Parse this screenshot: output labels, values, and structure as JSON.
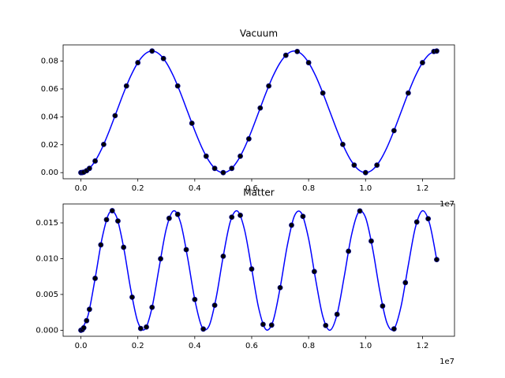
{
  "chart_data": [
    {
      "type": "line",
      "title": "Vacuum",
      "offset_text": "1e7",
      "x": [
        0,
        0.025,
        0.05,
        0.075,
        0.1,
        0.125,
        0.15,
        0.175,
        0.2,
        0.225,
        0.25,
        0.275,
        0.3,
        0.325,
        0.35,
        0.375,
        0.4,
        0.425,
        0.45,
        0.475,
        0.5,
        0.525,
        0.55,
        0.575,
        0.6,
        0.625,
        0.65,
        0.675,
        0.7,
        0.725,
        0.75,
        0.775,
        0.8,
        0.825,
        0.85,
        0.875,
        0.9,
        0.925,
        0.95,
        0.975,
        1.0,
        1.025,
        1.05,
        1.075,
        1.1,
        1.125,
        1.15,
        1.175,
        1.2,
        1.225,
        1.25
      ],
      "series": [
        {
          "color": "#0000ff",
          "values": [
            0,
            0.00213,
            0.00833,
            0.01797,
            0.03013,
            0.0436,
            0.05707,
            0.06923,
            0.07887,
            0.08507,
            0.0872,
            0.08507,
            0.07887,
            0.06923,
            0.05707,
            0.0436,
            0.03013,
            0.01797,
            0.00833,
            0.00213,
            0,
            0.00213,
            0.00833,
            0.01797,
            0.03013,
            0.0436,
            0.05707,
            0.06923,
            0.07887,
            0.08507,
            0.0872,
            0.08507,
            0.07887,
            0.06923,
            0.05707,
            0.0436,
            0.03013,
            0.01797,
            0.00833,
            0.00213,
            0,
            0.00213,
            0.00833,
            0.01797,
            0.03013,
            0.0436,
            0.05707,
            0.06923,
            0.07887,
            0.08507,
            0.0872
          ]
        }
      ],
      "points": {
        "color": "#000000",
        "edgecolor": "#00008b",
        "x": [
          0,
          0.005,
          0.01,
          0.02,
          0.03,
          0.05,
          0.08,
          0.12,
          0.16,
          0.2,
          0.25,
          0.29,
          0.34,
          0.39,
          0.44,
          0.47,
          0.5,
          0.53,
          0.56,
          0.59,
          0.63,
          0.66,
          0.72,
          0.76,
          0.8,
          0.85,
          0.92,
          0.96,
          1.0,
          1.04,
          1.1,
          1.15,
          1.2,
          1.24,
          1.25
        ],
        "values": [
          0,
          9e-05,
          0.00034,
          0.00137,
          0.00306,
          0.00833,
          0.02024,
          0.04086,
          0.06216,
          0.07887,
          0.0872,
          0.08181,
          0.06216,
          0.03543,
          0.01181,
          0.00306,
          0,
          0.00306,
          0.01181,
          0.02422,
          0.04634,
          0.06216,
          0.08414,
          0.08686,
          0.07887,
          0.05707,
          0.02024,
          0.00539,
          0,
          0.00539,
          0.03013,
          0.05707,
          0.07887,
          0.08686,
          0.0872
        ]
      },
      "xlim": [
        -0.0625,
        1.3125
      ],
      "xticks": [
        {
          "value": 0,
          "label": "0.0"
        },
        {
          "value": 0.2,
          "label": "0.2"
        },
        {
          "value": 0.4,
          "label": "0.4"
        },
        {
          "value": 0.6,
          "label": "0.6"
        },
        {
          "value": 0.8,
          "label": "0.8"
        },
        {
          "value": 1.0,
          "label": "1.0"
        },
        {
          "value": 1.2,
          "label": "1.2"
        }
      ],
      "ylim": [
        -0.0044,
        0.0916
      ],
      "yticks": [
        {
          "value": 0,
          "label": "0.00"
        },
        {
          "value": 0.02,
          "label": "0.02"
        },
        {
          "value": 0.04,
          "label": "0.04"
        },
        {
          "value": 0.06,
          "label": "0.06"
        },
        {
          "value": 0.08,
          "label": "0.08"
        }
      ]
    },
    {
      "type": "line",
      "title": "Matter",
      "offset_text": "1e7",
      "x": [
        0,
        0.025,
        0.05,
        0.075,
        0.1,
        0.125,
        0.15,
        0.175,
        0.2,
        0.225,
        0.25,
        0.275,
        0.3,
        0.325,
        0.35,
        0.375,
        0.4,
        0.425,
        0.45,
        0.475,
        0.5,
        0.525,
        0.55,
        0.575,
        0.6,
        0.625,
        0.65,
        0.675,
        0.7,
        0.725,
        0.75,
        0.775,
        0.8,
        0.825,
        0.85,
        0.875,
        0.9,
        0.925,
        0.95,
        0.975,
        1.0,
        1.025,
        1.05,
        1.075,
        1.1,
        1.125,
        1.15,
        1.175,
        1.2,
        1.225,
        1.25
      ],
      "series": [
        {
          "color": "#0000ff",
          "values": [
            0,
            0.00207,
            0.00725,
            0.01297,
            0.01641,
            0.01586,
            0.01159,
            0.00572,
            0.00115,
            0.00015,
            0.0032,
            0.0088,
            0.01418,
            0.01667,
            0.01505,
            0.0101,
            0.0043,
            0.00049,
            0.00058,
            0.00451,
            0.01034,
            0.01519,
            0.01665,
            0.01401,
            0.00856,
            0.00301,
            0.0001,
            0.00128,
            0.00595,
            0.01181,
            0.01596,
            0.01634,
            0.01277,
            0.007,
            0.00191,
            0.0,
            0.00223,
            0.00748,
            0.01317,
            0.01647,
            0.01575,
            0.01137,
            0.0055,
            0.00104,
            0.00019,
            0.00339,
            0.00904,
            0.01435,
            0.01669,
            0.0149,
            0.00987
          ]
        }
      ],
      "points": {
        "color": "#000000",
        "edgecolor": "#00008b",
        "x": [
          0,
          0.005,
          0.01,
          0.02,
          0.03,
          0.05,
          0.07,
          0.09,
          0.11,
          0.13,
          0.15,
          0.18,
          0.21,
          0.23,
          0.25,
          0.28,
          0.31,
          0.34,
          0.37,
          0.4,
          0.43,
          0.47,
          0.5,
          0.53,
          0.56,
          0.6,
          0.64,
          0.67,
          0.7,
          0.74,
          0.78,
          0.82,
          0.86,
          0.9,
          0.94,
          0.98,
          1.02,
          1.06,
          1.1,
          1.14,
          1.18,
          1.22,
          1.25
        ],
        "values": [
          0,
          9e-05,
          0.00034,
          0.00134,
          0.00292,
          0.00725,
          0.01193,
          0.01545,
          0.0167,
          0.01526,
          0.01159,
          0.00462,
          0.00025,
          0.00045,
          0.0032,
          0.00999,
          0.01564,
          0.01619,
          0.01126,
          0.0043,
          0.00017,
          0.00349,
          0.01034,
          0.0158,
          0.01606,
          0.00856,
          0.00082,
          0.00072,
          0.00595,
          0.01468,
          0.01591,
          0.0082,
          0.00067,
          0.00223,
          0.01104,
          0.01666,
          0.01246,
          0.00339,
          0.00019,
          0.00665,
          0.01512,
          0.01558,
          0.00987
        ]
      },
      "xlim": [
        -0.0625,
        1.3125
      ],
      "xticks": [
        {
          "value": 0,
          "label": "0.0"
        },
        {
          "value": 0.2,
          "label": "0.2"
        },
        {
          "value": 0.4,
          "label": "0.4"
        },
        {
          "value": 0.6,
          "label": "0.6"
        },
        {
          "value": 0.8,
          "label": "0.8"
        },
        {
          "value": 1.0,
          "label": "1.0"
        },
        {
          "value": 1.2,
          "label": "1.2"
        }
      ],
      "ylim": [
        -0.00084,
        0.01764
      ],
      "yticks": [
        {
          "value": 0,
          "label": "0.000"
        },
        {
          "value": 0.005,
          "label": "0.005"
        },
        {
          "value": 0.01,
          "label": "0.010"
        },
        {
          "value": 0.015,
          "label": "0.015"
        }
      ]
    }
  ]
}
